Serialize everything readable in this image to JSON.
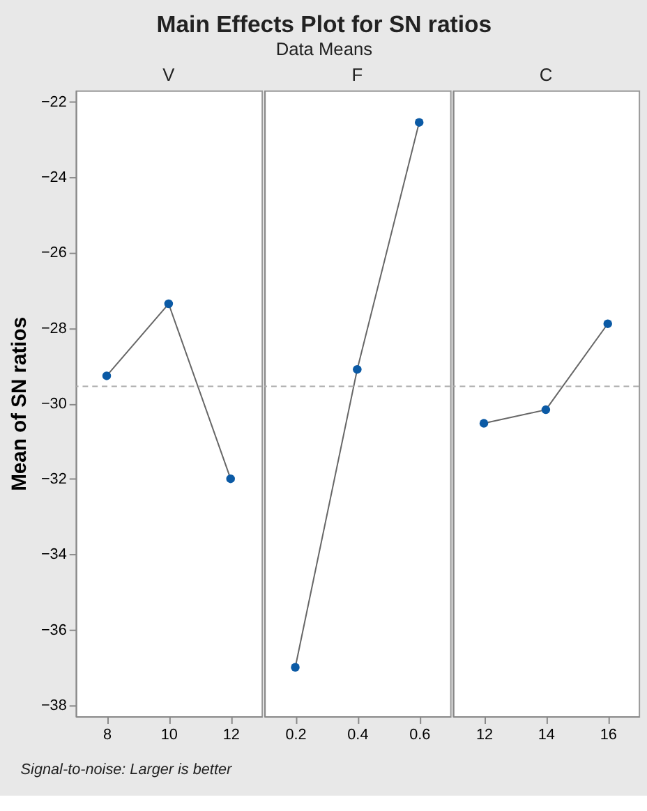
{
  "chart_data": [
    {
      "type": "line",
      "xlabel": "V",
      "ylabel": "Mean of SN ratios",
      "annotations": [
        "Signal-to-noise: Larger is better"
      ],
      "x": [
        8,
        10,
        12
      ],
      "series": [
        {
          "color": "#0b5aa5",
          "values": [
            -29.27,
            -27.36,
            -32.0
          ]
        }
      ],
      "xlim": [
        7,
        13
      ],
      "xticks": [
        8,
        10,
        12
      ],
      "ylim": [
        -38.3,
        -21.7
      ],
      "yticks": [
        -38,
        -36,
        -34,
        -32,
        -30,
        -28,
        -26,
        -24,
        -22
      ],
      "marker": "circle",
      "grid": false,
      "ref_lines": [
        {
          "axis": "y",
          "value": -29.55,
          "color": "#aaaaaa",
          "line_style": "dashed"
        }
      ]
    },
    {
      "type": "line",
      "title": "Main Effects Plot for SN ratios",
      "subtitle": "Data Means",
      "xlabel": "F",
      "x": [
        0.2,
        0.4,
        0.6
      ],
      "series": [
        {
          "color": "#0b5aa5",
          "values": [
            -37.0,
            -29.1,
            -22.55
          ]
        }
      ],
      "xlim": [
        0.1,
        0.7
      ],
      "xticks": [
        0.2,
        0.4,
        0.6
      ],
      "ylim": [
        -38.3,
        -21.7
      ],
      "tick_labels": "x",
      "marker": "circle",
      "grid": false,
      "ref_lines": [
        {
          "axis": "y",
          "value": -29.55,
          "color": "#aaaaaa",
          "line_style": "dashed"
        }
      ]
    },
    {
      "type": "line",
      "xlabel": "C",
      "x": [
        12,
        14,
        16
      ],
      "series": [
        {
          "color": "#0b5aa5",
          "values": [
            -30.53,
            -30.17,
            -27.89
          ]
        }
      ],
      "xlim": [
        11,
        17
      ],
      "xticks": [
        12,
        14,
        16
      ],
      "ylim": [
        -38.3,
        -21.7
      ],
      "tick_labels": "x",
      "marker": "circle",
      "grid": false,
      "ref_lines": [
        {
          "axis": "y",
          "value": -29.55,
          "color": "#aaaaaa",
          "line_style": "dashed"
        }
      ]
    }
  ]
}
